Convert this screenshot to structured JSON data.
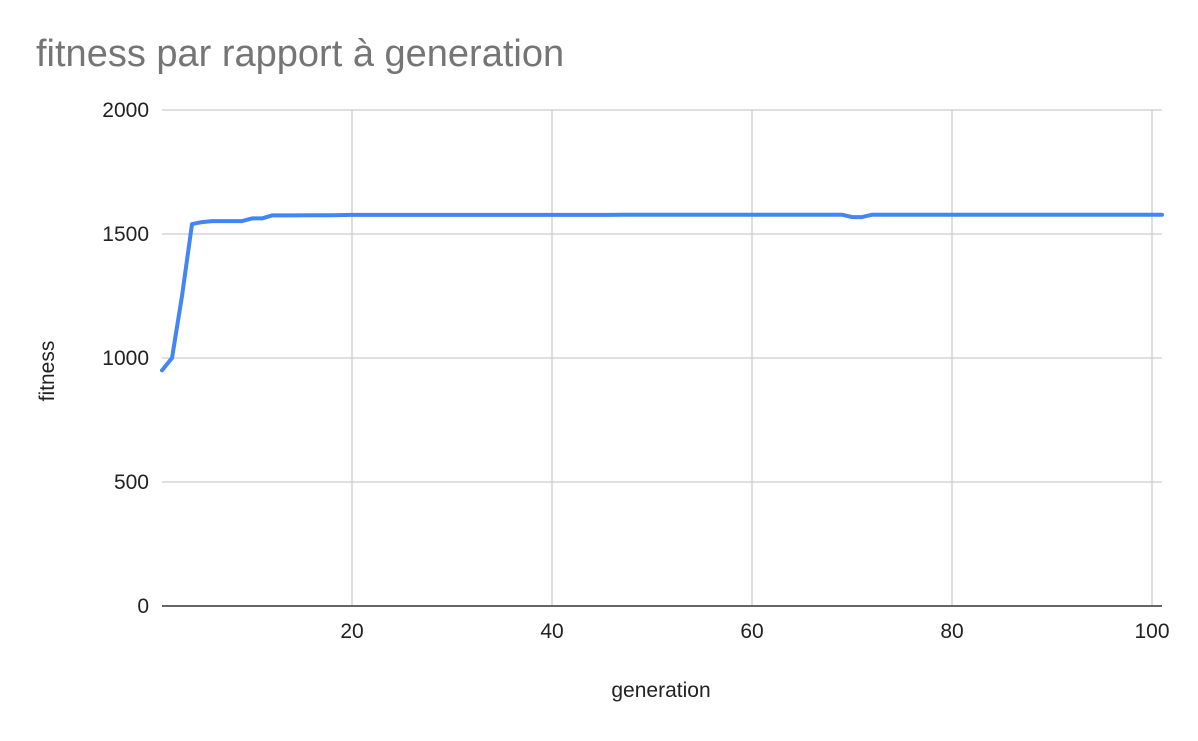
{
  "chart_data": {
    "type": "line",
    "title": "fitness par rapport à generation",
    "xlabel": "generation",
    "ylabel": "fitness",
    "xlim": [
      1,
      101
    ],
    "ylim": [
      0,
      2000
    ],
    "x_ticks": [
      20,
      40,
      60,
      80,
      100
    ],
    "y_ticks": [
      0,
      500,
      1000,
      1500,
      2000
    ],
    "grid": true,
    "legend": "none",
    "colors": {
      "series": "#4285f4",
      "grid": "#cccccc",
      "axis": "#333333",
      "title": "#757575"
    },
    "series": [
      {
        "points": [
          [
            1,
            950
          ],
          [
            2,
            1000
          ],
          [
            3,
            1250
          ],
          [
            4,
            1540
          ],
          [
            5,
            1548
          ],
          [
            6,
            1552
          ],
          [
            7,
            1552
          ],
          [
            8,
            1552
          ],
          [
            9,
            1552
          ],
          [
            10,
            1563
          ],
          [
            11,
            1563
          ],
          [
            12,
            1575
          ],
          [
            14,
            1575
          ],
          [
            16,
            1576
          ],
          [
            18,
            1576
          ],
          [
            20,
            1577
          ],
          [
            30,
            1577
          ],
          [
            40,
            1577
          ],
          [
            46,
            1577
          ],
          [
            47,
            1578
          ],
          [
            60,
            1578
          ],
          [
            69,
            1578
          ],
          [
            70,
            1568
          ],
          [
            71,
            1568
          ],
          [
            72,
            1578
          ],
          [
            80,
            1578
          ],
          [
            90,
            1578
          ],
          [
            100,
            1578
          ],
          [
            101,
            1578
          ]
        ]
      }
    ]
  }
}
